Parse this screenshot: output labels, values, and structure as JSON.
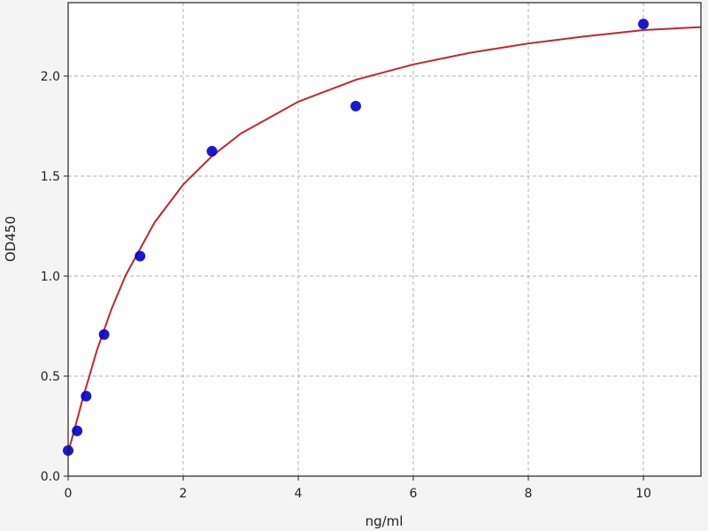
{
  "chart_data": {
    "type": "scatter",
    "title": "",
    "xlabel": "ng/ml",
    "ylabel": "OD450",
    "xlim": [
      0,
      11
    ],
    "ylim": [
      0,
      2.367
    ],
    "xticks": [
      0,
      2,
      4,
      6,
      8,
      10
    ],
    "xtick_labels": [
      "0",
      "2",
      "4",
      "6",
      "8",
      "10"
    ],
    "yticks": [
      0,
      0.5,
      1.0,
      1.5,
      2.0
    ],
    "ytick_labels": [
      "0.0",
      "0.5",
      "1.0",
      "1.5",
      "2.0"
    ],
    "grid": true,
    "points": {
      "x": [
        0,
        0.156,
        0.3125,
        0.625,
        1.25,
        2.5,
        5,
        10
      ],
      "y": [
        0.128,
        0.226,
        0.4,
        0.708,
        1.1,
        1.624,
        1.85,
        2.26
      ],
      "color": "#0000cc"
    },
    "fit_curve": {
      "x": [
        0,
        0.1,
        0.25,
        0.5,
        0.75,
        1,
        1.5,
        2,
        2.5,
        3,
        4,
        5,
        6,
        7,
        8,
        9,
        10,
        11
      ],
      "y": [
        0.12,
        0.222,
        0.384,
        0.629,
        0.833,
        1.004,
        1.267,
        1.458,
        1.6,
        1.712,
        1.872,
        1.981,
        2.058,
        2.117,
        2.163,
        2.199,
        2.23,
        2.245
      ],
      "color": "#c0282d"
    }
  }
}
